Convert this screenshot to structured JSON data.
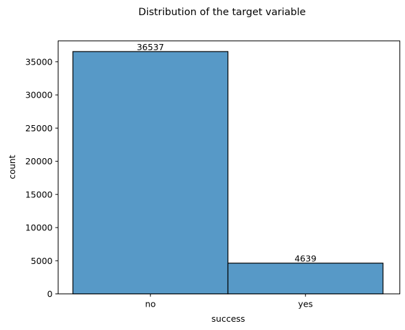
{
  "chart_data": {
    "type": "bar",
    "title": "Distribution of the target variable",
    "xlabel": "success",
    "ylabel": "count",
    "categories": [
      "no",
      "yes"
    ],
    "values": [
      36537,
      4639
    ],
    "data_labels": [
      "36537",
      "4639"
    ],
    "ylim": [
      0,
      38143.8
    ],
    "yticks": [
      0,
      5000,
      10000,
      15000,
      20000,
      25000,
      30000,
      35000
    ],
    "ytick_labels": [
      "0",
      "5000",
      "10000",
      "15000",
      "20000",
      "25000",
      "30000",
      "35000"
    ],
    "grid": false,
    "legend": "none",
    "bar_color": "#5799c7",
    "bar_edge_color": "#000000"
  }
}
